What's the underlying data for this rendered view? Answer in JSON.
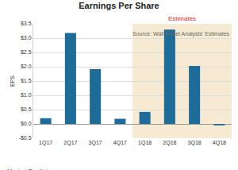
{
  "chart_data": {
    "type": "bar",
    "title": "Earnings Per Share",
    "y_label": "EPS",
    "categories": [
      "1Q17",
      "2Q17",
      "3Q17",
      "4Q17",
      "1Q18",
      "2Q18",
      "3Q18",
      "4Q18"
    ],
    "values": [
      0.2,
      3.18,
      1.92,
      0.18,
      0.42,
      3.3,
      2.03,
      -0.05
    ],
    "color": "#1d6c99",
    "ylim": [
      -0.5,
      3.5
    ],
    "yticks": [
      {
        "value": -0.5,
        "label": "-$0.5"
      },
      {
        "value": 0,
        "label": "$0.0"
      },
      {
        "value": 0.5,
        "label": "$0.5"
      },
      {
        "value": 1,
        "label": "$1.0"
      },
      {
        "value": 1.5,
        "label": "$1.5"
      },
      {
        "value": 2,
        "label": "$2.0"
      },
      {
        "value": 2.5,
        "label": "$2.5"
      },
      {
        "value": 3,
        "label": "$3.0"
      },
      {
        "value": 3.5,
        "label": "$3.5"
      }
    ],
    "grid": true,
    "annotations": [
      {
        "text": "Estimates",
        "span": [
          "1Q18",
          "4Q18"
        ]
      }
    ],
    "source": "Source: Wall Street Analysts' Estimates",
    "logo": "Market Realist"
  }
}
